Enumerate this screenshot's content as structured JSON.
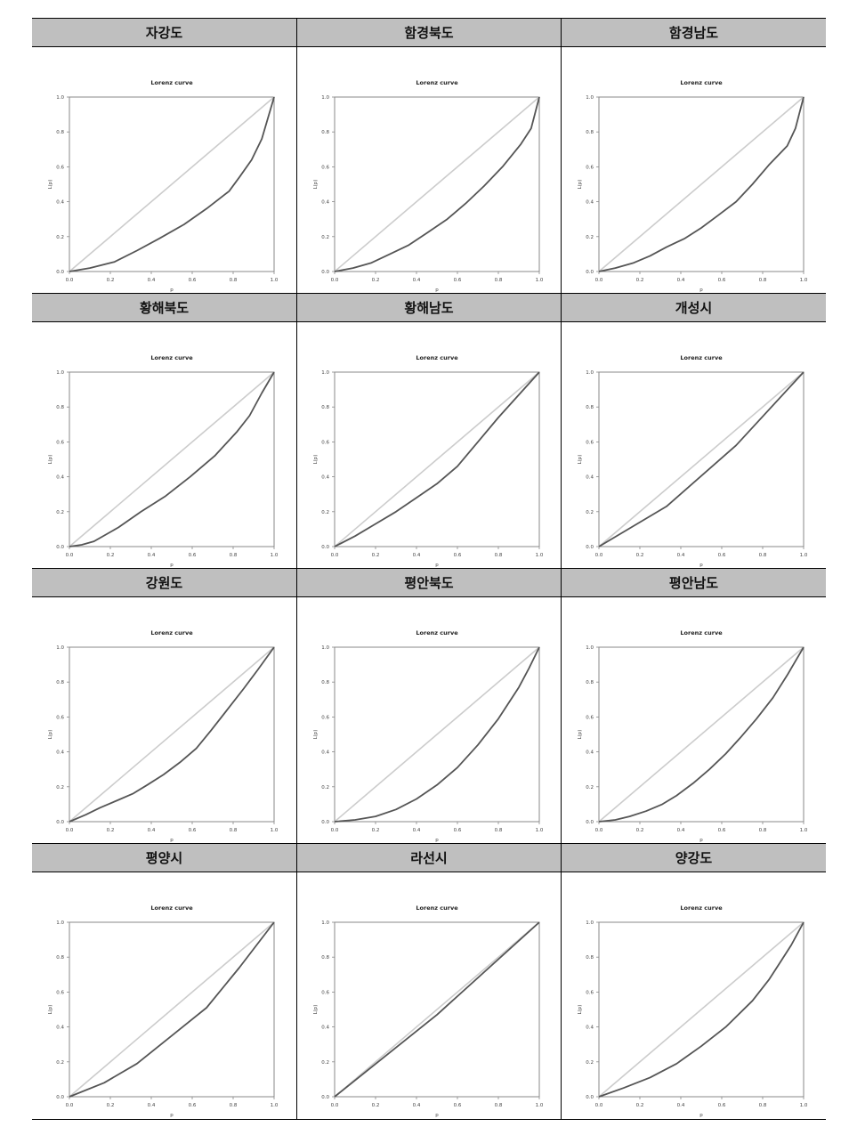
{
  "chart_data": [
    {
      "type": "line",
      "region": "자강도",
      "title": "Lorenz curve",
      "xlabel": "p",
      "ylabel": "L(p)",
      "xlim": [
        0,
        1
      ],
      "ylim": [
        0,
        1
      ],
      "xticks": [
        "0.0",
        "0.2",
        "0.4",
        "0.6",
        "0.8",
        "1.0"
      ],
      "yticks": [
        "0.0",
        "0.2",
        "0.4",
        "0.6",
        "0.8",
        "1.0"
      ],
      "series": [
        {
          "name": "",
          "color": "#cccccc",
          "x": [
            0,
            1
          ],
          "y": [
            0,
            1
          ]
        },
        {
          "name": "",
          "color": "#555555",
          "x": [
            0,
            0.1,
            0.22,
            0.33,
            0.44,
            0.56,
            0.67,
            0.78,
            0.83,
            0.89,
            0.94,
            0.98,
            1
          ],
          "y": [
            0,
            0.02,
            0.055,
            0.12,
            0.19,
            0.27,
            0.36,
            0.46,
            0.54,
            0.64,
            0.76,
            0.92,
            1
          ]
        }
      ]
    },
    {
      "type": "line",
      "region": "함경북도",
      "title": "Lorenz curve",
      "xlabel": "p",
      "ylabel": "L(p)",
      "xlim": [
        0,
        1
      ],
      "ylim": [
        0,
        1
      ],
      "xticks": [
        "0.0",
        "0.2",
        "0.4",
        "0.6",
        "0.8",
        "1.0"
      ],
      "yticks": [
        "0.0",
        "0.2",
        "0.4",
        "0.6",
        "0.8",
        "1.0"
      ],
      "series": [
        {
          "name": "",
          "color": "#cccccc",
          "x": [
            0,
            1
          ],
          "y": [
            0,
            1
          ]
        },
        {
          "name": "",
          "color": "#555555",
          "x": [
            0,
            0.09,
            0.18,
            0.27,
            0.36,
            0.45,
            0.55,
            0.64,
            0.73,
            0.82,
            0.91,
            0.96,
            1
          ],
          "y": [
            0,
            0.02,
            0.05,
            0.1,
            0.15,
            0.22,
            0.3,
            0.39,
            0.49,
            0.6,
            0.73,
            0.82,
            1
          ]
        }
      ]
    },
    {
      "type": "line",
      "region": "함경남도",
      "title": "Lorenz curve",
      "xlabel": "p",
      "ylabel": "L(p)",
      "xlim": [
        0,
        1
      ],
      "ylim": [
        0,
        1
      ],
      "xticks": [
        "0.0",
        "0.2",
        "0.4",
        "0.6",
        "0.8",
        "1.0"
      ],
      "yticks": [
        "0.0",
        "0.2",
        "0.4",
        "0.6",
        "0.8",
        "1.0"
      ],
      "series": [
        {
          "name": "",
          "color": "#cccccc",
          "x": [
            0,
            1
          ],
          "y": [
            0,
            1
          ]
        },
        {
          "name": "",
          "color": "#555555",
          "x": [
            0,
            0.08,
            0.17,
            0.25,
            0.33,
            0.42,
            0.5,
            0.58,
            0.67,
            0.75,
            0.83,
            0.92,
            0.96,
            1
          ],
          "y": [
            0,
            0.02,
            0.05,
            0.09,
            0.14,
            0.19,
            0.25,
            0.32,
            0.4,
            0.5,
            0.61,
            0.72,
            0.82,
            1
          ]
        }
      ]
    },
    {
      "type": "line",
      "region": "황해북도",
      "title": "Lorenz curve",
      "xlabel": "p",
      "ylabel": "L(p)",
      "xlim": [
        0,
        1
      ],
      "ylim": [
        0,
        1
      ],
      "xticks": [
        "0.0",
        "0.2",
        "0.4",
        "0.6",
        "0.8",
        "1.0"
      ],
      "yticks": [
        "0.0",
        "0.2",
        "0.4",
        "0.6",
        "0.8",
        "1.0"
      ],
      "series": [
        {
          "name": "",
          "color": "#cccccc",
          "x": [
            0,
            1
          ],
          "y": [
            0,
            1
          ]
        },
        {
          "name": "",
          "color": "#555555",
          "x": [
            0,
            0.06,
            0.12,
            0.24,
            0.35,
            0.47,
            0.59,
            0.71,
            0.82,
            0.88,
            0.94,
            1
          ],
          "y": [
            0,
            0.01,
            0.03,
            0.11,
            0.2,
            0.29,
            0.4,
            0.52,
            0.66,
            0.75,
            0.88,
            1
          ]
        }
      ]
    },
    {
      "type": "line",
      "region": "황해남도",
      "title": "Lorenz curve",
      "xlabel": "p",
      "ylabel": "L(p)",
      "xlim": [
        0,
        1
      ],
      "ylim": [
        0,
        1
      ],
      "xticks": [
        "0.0",
        "0.2",
        "0.4",
        "0.6",
        "0.8",
        "1.0"
      ],
      "yticks": [
        "0.0",
        "0.2",
        "0.4",
        "0.6",
        "0.8",
        "1.0"
      ],
      "series": [
        {
          "name": "",
          "color": "#cccccc",
          "x": [
            0,
            1
          ],
          "y": [
            0,
            1
          ]
        },
        {
          "name": "",
          "color": "#555555",
          "x": [
            0,
            0.1,
            0.2,
            0.3,
            0.4,
            0.5,
            0.6,
            0.7,
            0.8,
            0.9,
            1
          ],
          "y": [
            0,
            0.06,
            0.13,
            0.2,
            0.28,
            0.36,
            0.46,
            0.6,
            0.74,
            0.87,
            1
          ]
        }
      ]
    },
    {
      "type": "line",
      "region": "개성시",
      "title": "Lorenz curve",
      "xlabel": "p",
      "ylabel": "L(p)",
      "xlim": [
        0,
        1
      ],
      "ylim": [
        0,
        1
      ],
      "xticks": [
        "0.0",
        "0.2",
        "0.4",
        "0.6",
        "0.8",
        "1.0"
      ],
      "yticks": [
        "0.0",
        "0.2",
        "0.4",
        "0.6",
        "0.8",
        "1.0"
      ],
      "series": [
        {
          "name": "",
          "color": "#cccccc",
          "x": [
            0,
            1
          ],
          "y": [
            0,
            1
          ]
        },
        {
          "name": "",
          "color": "#555555",
          "x": [
            0,
            0.33,
            0.67,
            1
          ],
          "y": [
            0,
            0.23,
            0.58,
            1
          ]
        }
      ]
    },
    {
      "type": "line",
      "region": "강원도",
      "title": "Lorenz curve",
      "xlabel": "p",
      "ylabel": "L(p)",
      "xlim": [
        0,
        1
      ],
      "ylim": [
        0,
        1
      ],
      "xticks": [
        "0.0",
        "0.2",
        "0.4",
        "0.6",
        "0.8",
        "1.0"
      ],
      "yticks": [
        "0.0",
        "0.2",
        "0.4",
        "0.6",
        "0.8",
        "1.0"
      ],
      "series": [
        {
          "name": "",
          "color": "#cccccc",
          "x": [
            0,
            1
          ],
          "y": [
            0,
            1
          ]
        },
        {
          "name": "",
          "color": "#555555",
          "x": [
            0,
            0.08,
            0.15,
            0.23,
            0.31,
            0.38,
            0.46,
            0.54,
            0.62,
            0.69,
            0.77,
            0.85,
            0.92,
            1
          ],
          "y": [
            0,
            0.04,
            0.08,
            0.12,
            0.16,
            0.21,
            0.27,
            0.34,
            0.42,
            0.52,
            0.64,
            0.76,
            0.87,
            1
          ]
        }
      ]
    },
    {
      "type": "line",
      "region": "평안북도",
      "title": "Lorenz curve",
      "xlabel": "p",
      "ylabel": "L(p)",
      "xlim": [
        0,
        1
      ],
      "ylim": [
        0,
        1
      ],
      "xticks": [
        "0.0",
        "0.2",
        "0.4",
        "0.6",
        "0.8",
        "1.0"
      ],
      "yticks": [
        "0.0",
        "0.2",
        "0.4",
        "0.6",
        "0.8",
        "1.0"
      ],
      "series": [
        {
          "name": "",
          "color": "#cccccc",
          "x": [
            0,
            1
          ],
          "y": [
            0,
            1
          ]
        },
        {
          "name": "",
          "color": "#555555",
          "x": [
            0,
            0.1,
            0.2,
            0.3,
            0.4,
            0.5,
            0.6,
            0.7,
            0.8,
            0.9,
            0.95,
            1
          ],
          "y": [
            0,
            0.01,
            0.03,
            0.07,
            0.13,
            0.21,
            0.31,
            0.44,
            0.59,
            0.77,
            0.88,
            1
          ]
        }
      ]
    },
    {
      "type": "line",
      "region": "평안남도",
      "title": "Lorenz curve",
      "xlabel": "p",
      "ylabel": "L(p)",
      "xlim": [
        0,
        1
      ],
      "ylim": [
        0,
        1
      ],
      "xticks": [
        "0.0",
        "0.2",
        "0.4",
        "0.6",
        "0.8",
        "1.0"
      ],
      "yticks": [
        "0.0",
        "0.2",
        "0.4",
        "0.6",
        "0.8",
        "1.0"
      ],
      "series": [
        {
          "name": "",
          "color": "#cccccc",
          "x": [
            0,
            1
          ],
          "y": [
            0,
            1
          ]
        },
        {
          "name": "",
          "color": "#555555",
          "x": [
            0,
            0.08,
            0.15,
            0.23,
            0.31,
            0.38,
            0.46,
            0.54,
            0.62,
            0.69,
            0.77,
            0.85,
            0.92,
            1
          ],
          "y": [
            0,
            0.01,
            0.03,
            0.06,
            0.1,
            0.15,
            0.22,
            0.3,
            0.39,
            0.48,
            0.59,
            0.71,
            0.84,
            1
          ]
        }
      ]
    },
    {
      "type": "line",
      "region": "평양시",
      "title": "Lorenz curve",
      "xlabel": "p",
      "ylabel": "L(p)",
      "xlim": [
        0,
        1
      ],
      "ylim": [
        0,
        1
      ],
      "xticks": [
        "0.0",
        "0.2",
        "0.4",
        "0.6",
        "0.8",
        "1.0"
      ],
      "yticks": [
        "0.0",
        "0.2",
        "0.4",
        "0.6",
        "0.8",
        "1.0"
      ],
      "series": [
        {
          "name": "",
          "color": "#cccccc",
          "x": [
            0,
            1
          ],
          "y": [
            0,
            1
          ]
        },
        {
          "name": "",
          "color": "#555555",
          "x": [
            0,
            0.17,
            0.33,
            0.5,
            0.67,
            0.83,
            1
          ],
          "y": [
            0,
            0.08,
            0.19,
            0.35,
            0.51,
            0.74,
            1
          ]
        }
      ]
    },
    {
      "type": "line",
      "region": "라선시",
      "title": "Lorenz curve",
      "xlabel": "p",
      "ylabel": "L(p)",
      "xlim": [
        0,
        1
      ],
      "ylim": [
        0,
        1
      ],
      "xticks": [
        "0.0",
        "0.2",
        "0.4",
        "0.6",
        "0.8",
        "1.0"
      ],
      "yticks": [
        "0.0",
        "0.2",
        "0.4",
        "0.6",
        "0.8",
        "1.0"
      ],
      "series": [
        {
          "name": "",
          "color": "#cccccc",
          "x": [
            0,
            1
          ],
          "y": [
            0,
            1
          ]
        },
        {
          "name": "",
          "color": "#555555",
          "x": [
            0,
            0.5,
            1
          ],
          "y": [
            0,
            0.47,
            1
          ]
        }
      ]
    },
    {
      "type": "line",
      "region": "양강도",
      "title": "Lorenz curve",
      "xlabel": "p",
      "ylabel": "L(p)",
      "xlim": [
        0,
        1
      ],
      "ylim": [
        0,
        1
      ],
      "xticks": [
        "0.0",
        "0.2",
        "0.4",
        "0.6",
        "0.8",
        "1.0"
      ],
      "yticks": [
        "0.0",
        "0.2",
        "0.4",
        "0.6",
        "0.8",
        "1.0"
      ],
      "series": [
        {
          "name": "",
          "color": "#cccccc",
          "x": [
            0,
            1
          ],
          "y": [
            0,
            1
          ]
        },
        {
          "name": "",
          "color": "#555555",
          "x": [
            0,
            0.12,
            0.25,
            0.38,
            0.5,
            0.62,
            0.75,
            0.83,
            0.88,
            0.94,
            1
          ],
          "y": [
            0,
            0.05,
            0.11,
            0.19,
            0.29,
            0.4,
            0.55,
            0.67,
            0.76,
            0.87,
            1
          ]
        }
      ]
    }
  ]
}
